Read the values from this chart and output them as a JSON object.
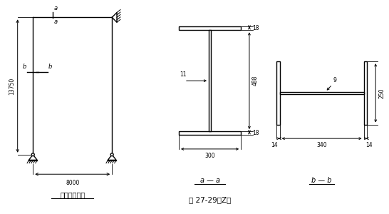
{
  "bg_color": "#ffffff",
  "fig_title": "图 27-29（Z）",
  "panel1_title": "刚架计算简图",
  "panel2_title": "a — a",
  "panel3_title": "b — b",
  "lw": 1.0
}
